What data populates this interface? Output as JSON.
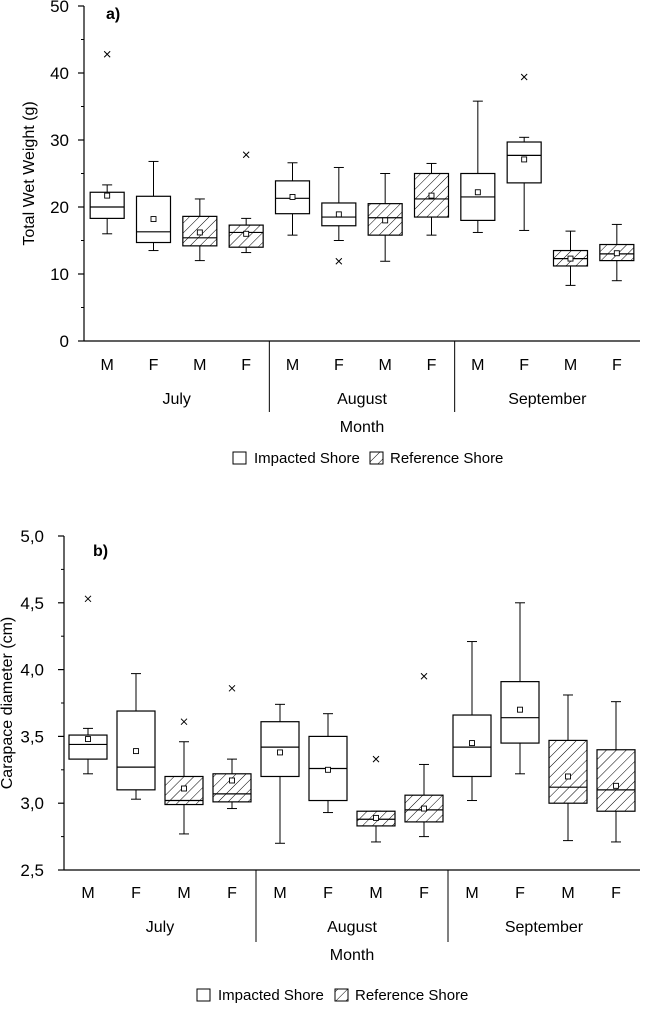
{
  "chart_data": [
    {
      "type": "box",
      "panel_label": "a)",
      "ylabel": "Total Wet Weight (g)",
      "xlabel": "Month",
      "ylim": [
        0,
        50
      ],
      "yticks": [
        "0",
        "10",
        "20",
        "30",
        "40",
        "50"
      ],
      "ytick_values": [
        0,
        10,
        20,
        30,
        40,
        50
      ],
      "months": [
        "July",
        "August",
        "September"
      ],
      "legend": {
        "impacted": "Impacted Shore",
        "reference": "Reference Shore"
      },
      "boxes": [
        {
          "month": "July",
          "sex": "M",
          "shore": "impacted",
          "q1": 18.3,
          "median": 20.0,
          "q3": 22.2,
          "whisker_low": 16.0,
          "whisker_high": 23.3,
          "mean": 21.7,
          "outliers": [
            42.8
          ]
        },
        {
          "month": "July",
          "sex": "F",
          "shore": "impacted",
          "q1": 14.7,
          "median": 16.3,
          "q3": 21.6,
          "whisker_low": 13.5,
          "whisker_high": 26.8,
          "mean": 18.2,
          "outliers": []
        },
        {
          "month": "July",
          "sex": "M",
          "shore": "reference",
          "q1": 14.2,
          "median": 15.4,
          "q3": 18.6,
          "whisker_low": 12.0,
          "whisker_high": 21.2,
          "mean": 16.2,
          "outliers": []
        },
        {
          "month": "July",
          "sex": "F",
          "shore": "reference",
          "q1": 14.0,
          "median": 16.2,
          "q3": 17.3,
          "whisker_low": 13.2,
          "whisker_high": 18.3,
          "mean": 16.0,
          "outliers": [
            27.8
          ]
        },
        {
          "month": "August",
          "sex": "M",
          "shore": "impacted",
          "q1": 19.0,
          "median": 21.3,
          "q3": 23.9,
          "whisker_low": 15.8,
          "whisker_high": 26.6,
          "mean": 21.5,
          "outliers": []
        },
        {
          "month": "August",
          "sex": "F",
          "shore": "impacted",
          "q1": 17.2,
          "median": 18.5,
          "q3": 20.6,
          "whisker_low": 15.0,
          "whisker_high": 25.9,
          "mean": 18.9,
          "outliers": [
            11.9
          ]
        },
        {
          "month": "August",
          "sex": "M",
          "shore": "reference",
          "q1": 15.8,
          "median": 18.4,
          "q3": 20.5,
          "whisker_low": 11.9,
          "whisker_high": 25.0,
          "mean": 18.0,
          "outliers": []
        },
        {
          "month": "August",
          "sex": "F",
          "shore": "reference",
          "q1": 18.5,
          "median": 21.2,
          "q3": 25.0,
          "whisker_low": 15.8,
          "whisker_high": 26.5,
          "mean": 21.7,
          "outliers": []
        },
        {
          "month": "September",
          "sex": "M",
          "shore": "impacted",
          "q1": 18.0,
          "median": 21.5,
          "q3": 25.0,
          "whisker_low": 16.2,
          "whisker_high": 35.8,
          "mean": 22.2,
          "outliers": []
        },
        {
          "month": "September",
          "sex": "F",
          "shore": "impacted",
          "q1": 23.6,
          "median": 27.7,
          "q3": 29.7,
          "whisker_low": 16.5,
          "whisker_high": 30.4,
          "mean": 27.1,
          "outliers": [
            39.4
          ]
        },
        {
          "month": "September",
          "sex": "M",
          "shore": "reference",
          "q1": 11.2,
          "median": 12.3,
          "q3": 13.5,
          "whisker_low": 8.3,
          "whisker_high": 16.4,
          "mean": 12.3,
          "outliers": []
        },
        {
          "month": "September",
          "sex": "F",
          "shore": "reference",
          "q1": 12.0,
          "median": 13.0,
          "q3": 14.4,
          "whisker_low": 9.0,
          "whisker_high": 17.4,
          "mean": 13.1,
          "outliers": []
        }
      ]
    },
    {
      "type": "box",
      "panel_label": "b)",
      "ylabel": "Carapace diameter (cm)",
      "xlabel": "Month",
      "ylim": [
        2.5,
        5.0
      ],
      "yticks": [
        "2,5",
        "3,0",
        "3,5",
        "4,0",
        "4,5",
        "5,0"
      ],
      "ytick_values": [
        2.5,
        3.0,
        3.5,
        4.0,
        4.5,
        5.0
      ],
      "months": [
        "July",
        "August",
        "September"
      ],
      "legend": {
        "impacted": "Impacted Shore",
        "reference": "Reference Shore"
      },
      "boxes": [
        {
          "month": "July",
          "sex": "M",
          "shore": "impacted",
          "q1": 3.33,
          "median": 3.44,
          "q3": 3.51,
          "whisker_low": 3.22,
          "whisker_high": 3.56,
          "mean": 3.48,
          "outliers": [
            4.53
          ]
        },
        {
          "month": "July",
          "sex": "F",
          "shore": "impacted",
          "q1": 3.1,
          "median": 3.27,
          "q3": 3.69,
          "whisker_low": 3.03,
          "whisker_high": 3.97,
          "mean": 3.39,
          "outliers": []
        },
        {
          "month": "July",
          "sex": "M",
          "shore": "reference",
          "q1": 2.99,
          "median": 3.02,
          "q3": 3.2,
          "whisker_low": 2.77,
          "whisker_high": 3.46,
          "mean": 3.11,
          "outliers": [
            3.61
          ]
        },
        {
          "month": "July",
          "sex": "F",
          "shore": "reference",
          "q1": 3.01,
          "median": 3.07,
          "q3": 3.22,
          "whisker_low": 2.96,
          "whisker_high": 3.33,
          "mean": 3.17,
          "outliers": [
            3.86
          ]
        },
        {
          "month": "August",
          "sex": "M",
          "shore": "impacted",
          "q1": 3.2,
          "median": 3.42,
          "q3": 3.61,
          "whisker_low": 2.7,
          "whisker_high": 3.74,
          "mean": 3.38,
          "outliers": []
        },
        {
          "month": "August",
          "sex": "F",
          "shore": "impacted",
          "q1": 3.02,
          "median": 3.26,
          "q3": 3.5,
          "whisker_low": 2.93,
          "whisker_high": 3.67,
          "mean": 3.25,
          "outliers": []
        },
        {
          "month": "August",
          "sex": "M",
          "shore": "reference",
          "q1": 2.83,
          "median": 2.88,
          "q3": 2.94,
          "whisker_low": 2.71,
          "whisker_high": 2.94,
          "mean": 2.89,
          "outliers": [
            3.33
          ]
        },
        {
          "month": "August",
          "sex": "F",
          "shore": "reference",
          "q1": 2.86,
          "median": 2.95,
          "q3": 3.06,
          "whisker_low": 2.75,
          "whisker_high": 3.29,
          "mean": 2.96,
          "outliers": [
            3.95
          ]
        },
        {
          "month": "September",
          "sex": "M",
          "shore": "impacted",
          "q1": 3.2,
          "median": 3.42,
          "q3": 3.66,
          "whisker_low": 3.02,
          "whisker_high": 4.21,
          "mean": 3.45,
          "outliers": []
        },
        {
          "month": "September",
          "sex": "F",
          "shore": "impacted",
          "q1": 3.45,
          "median": 3.64,
          "q3": 3.91,
          "whisker_low": 3.22,
          "whisker_high": 4.5,
          "mean": 3.7,
          "outliers": []
        },
        {
          "month": "September",
          "sex": "M",
          "shore": "reference",
          "q1": 3.0,
          "median": 3.12,
          "q3": 3.47,
          "whisker_low": 2.72,
          "whisker_high": 3.81,
          "mean": 3.2,
          "outliers": []
        },
        {
          "month": "September",
          "sex": "F",
          "shore": "reference",
          "q1": 2.94,
          "median": 3.1,
          "q3": 3.4,
          "whisker_low": 2.71,
          "whisker_high": 3.76,
          "mean": 3.13,
          "outliers": []
        }
      ]
    }
  ]
}
